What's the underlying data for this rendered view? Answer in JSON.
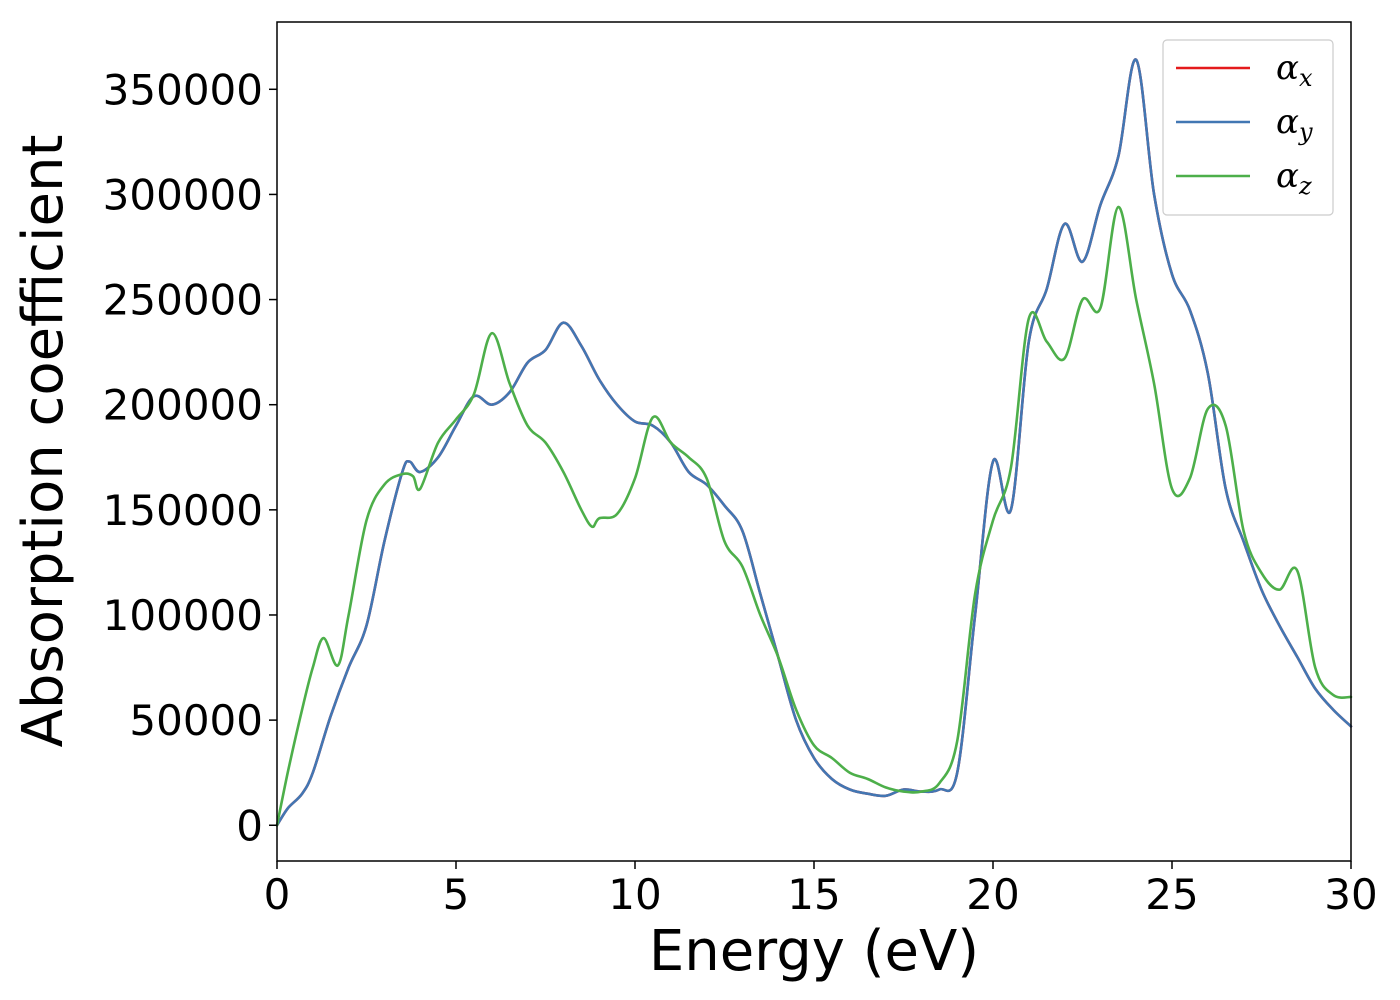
{
  "chart_data": {
    "type": "line",
    "title": "",
    "xlabel": "Energy (eV)",
    "ylabel": "Absorption coefficient",
    "xlim": [
      0,
      30
    ],
    "ylim": [
      -17000,
      382000
    ],
    "xticks": [
      "0",
      "5",
      "10",
      "15",
      "20",
      "25",
      "30"
    ],
    "yticks": [
      "0",
      "50000",
      "100000",
      "150000",
      "200000",
      "250000",
      "300000",
      "350000"
    ],
    "grid": false,
    "legend_position": "top-right",
    "series": [
      {
        "name": "α_x",
        "legend_base": "α",
        "legend_sub": "x",
        "color": "#e41a1c",
        "x": [
          0,
          0.3,
          0.7,
          1.0,
          1.5,
          2.0,
          2.5,
          3.0,
          3.5,
          3.7,
          4.0,
          4.5,
          5.0,
          5.5,
          6.0,
          6.5,
          7.0,
          7.5,
          8.0,
          8.5,
          9.0,
          9.5,
          10.0,
          10.5,
          11.0,
          11.5,
          12.0,
          12.5,
          13.0,
          13.5,
          14.0,
          14.5,
          15.0,
          15.5,
          16.0,
          16.5,
          17.0,
          17.5,
          18.0,
          18.5,
          19.0,
          19.5,
          20.0,
          20.5,
          21.0,
          21.5,
          22.0,
          22.5,
          23.0,
          23.5,
          24.0,
          24.5,
          25.0,
          25.5,
          26.0,
          26.5,
          27.0,
          27.5,
          28.0,
          28.5,
          29.0,
          29.5,
          30.0
        ],
        "y": [
          0,
          8000,
          15000,
          25000,
          52000,
          75000,
          95000,
          135000,
          168000,
          173000,
          168000,
          175000,
          190000,
          204000,
          200000,
          206000,
          220000,
          226000,
          239000,
          228000,
          212000,
          200000,
          192000,
          190000,
          182000,
          168000,
          162000,
          152000,
          140000,
          110000,
          80000,
          50000,
          32000,
          22000,
          17000,
          15000,
          14000,
          17000,
          16000,
          17000,
          25000,
          100000,
          173000,
          150000,
          230000,
          255000,
          286000,
          268000,
          295000,
          318000,
          364000,
          300000,
          262000,
          245000,
          215000,
          160000,
          135000,
          112000,
          95000,
          80000,
          65000,
          55000,
          47000
        ]
      },
      {
        "name": "α_y",
        "legend_base": "α",
        "legend_sub": "y",
        "color": "#4277b3",
        "x": [
          0,
          0.3,
          0.7,
          1.0,
          1.5,
          2.0,
          2.5,
          3.0,
          3.5,
          3.7,
          4.0,
          4.5,
          5.0,
          5.5,
          6.0,
          6.5,
          7.0,
          7.5,
          8.0,
          8.5,
          9.0,
          9.5,
          10.0,
          10.5,
          11.0,
          11.5,
          12.0,
          12.5,
          13.0,
          13.5,
          14.0,
          14.5,
          15.0,
          15.5,
          16.0,
          16.5,
          17.0,
          17.5,
          18.0,
          18.5,
          19.0,
          19.5,
          20.0,
          20.5,
          21.0,
          21.5,
          22.0,
          22.5,
          23.0,
          23.5,
          24.0,
          24.5,
          25.0,
          25.5,
          26.0,
          26.5,
          27.0,
          27.5,
          28.0,
          28.5,
          29.0,
          29.5,
          30.0
        ],
        "y": [
          0,
          8000,
          15000,
          25000,
          52000,
          75000,
          95000,
          135000,
          168000,
          173000,
          168000,
          175000,
          190000,
          204000,
          200000,
          206000,
          220000,
          226000,
          239000,
          228000,
          212000,
          200000,
          192000,
          190000,
          182000,
          168000,
          162000,
          152000,
          140000,
          110000,
          80000,
          50000,
          32000,
          22000,
          17000,
          15000,
          14000,
          17000,
          16000,
          17000,
          25000,
          100000,
          173000,
          150000,
          230000,
          255000,
          286000,
          268000,
          295000,
          318000,
          364000,
          300000,
          262000,
          245000,
          215000,
          160000,
          135000,
          112000,
          95000,
          80000,
          65000,
          55000,
          47000
        ]
      },
      {
        "name": "α_z",
        "legend_base": "α",
        "legend_sub": "z",
        "color": "#4daf4a",
        "x": [
          0,
          0.3,
          0.7,
          1.0,
          1.3,
          1.7,
          2.0,
          2.5,
          3.0,
          3.5,
          3.8,
          4.0,
          4.5,
          5.0,
          5.5,
          6.0,
          6.5,
          7.0,
          7.5,
          8.0,
          8.5,
          8.8,
          9.0,
          9.5,
          10.0,
          10.5,
          11.0,
          11.5,
          12.0,
          12.5,
          13.0,
          13.5,
          14.0,
          14.5,
          15.0,
          15.5,
          16.0,
          16.5,
          17.0,
          17.5,
          18.0,
          18.5,
          19.0,
          19.5,
          20.0,
          20.5,
          21.0,
          21.5,
          22.0,
          22.5,
          23.0,
          23.5,
          24.0,
          24.5,
          25.0,
          25.5,
          26.0,
          26.5,
          27.0,
          27.5,
          28.0,
          28.5,
          29.0,
          29.5,
          30.0
        ],
        "y": [
          0,
          25000,
          55000,
          75000,
          89000,
          76000,
          100000,
          145000,
          162000,
          167000,
          166000,
          160000,
          182000,
          193000,
          205000,
          234000,
          210000,
          190000,
          182000,
          168000,
          150000,
          142000,
          146000,
          148000,
          165000,
          194000,
          182000,
          175000,
          165000,
          135000,
          123000,
          100000,
          80000,
          55000,
          38000,
          32000,
          25000,
          22000,
          18000,
          16000,
          16000,
          20000,
          40000,
          110000,
          145000,
          170000,
          241000,
          230000,
          222000,
          250000,
          246000,
          294000,
          250000,
          210000,
          160000,
          165000,
          198000,
          190000,
          140000,
          120000,
          112000,
          121000,
          75000,
          62000,
          61000
        ]
      }
    ]
  }
}
